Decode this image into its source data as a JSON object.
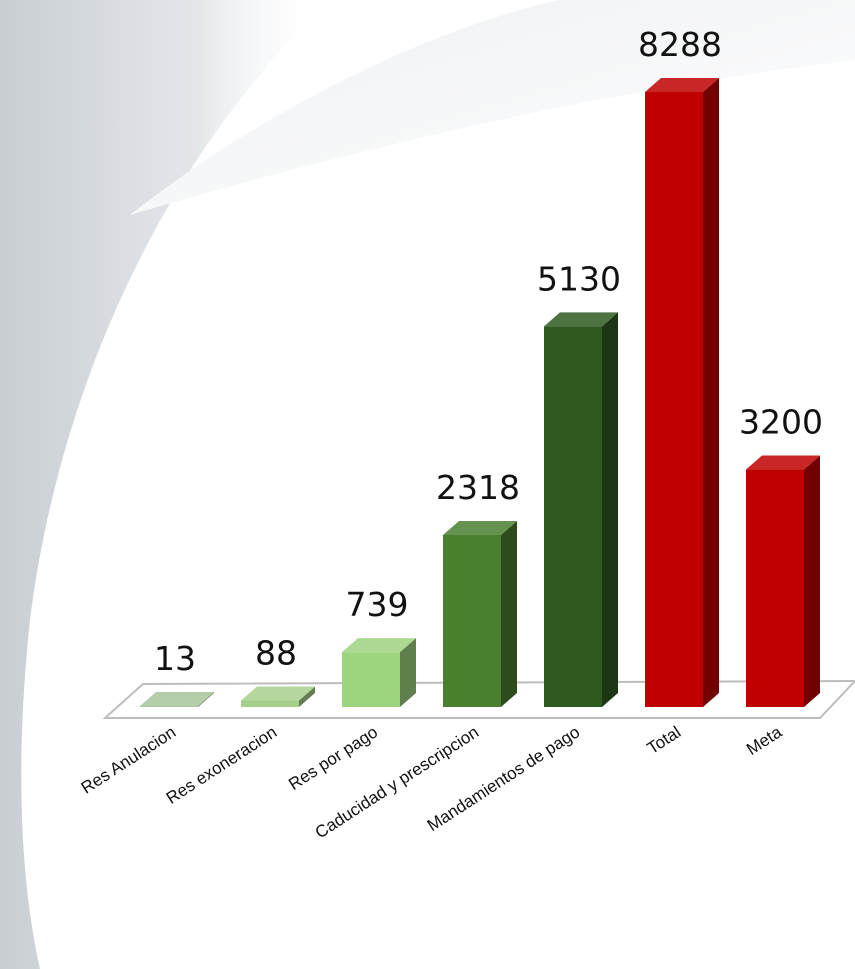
{
  "chart_data": {
    "type": "bar3d",
    "categories": [
      "Res Anulacion",
      "Res exoneracion",
      "Res por pago",
      "Caducidad y prescripcion",
      "Mandamientos de pago",
      "Total",
      "Meta"
    ],
    "values": [
      13,
      88,
      739,
      2318,
      5130,
      8288,
      3200
    ],
    "colors": [
      "#a9c49a",
      "#a6d08a",
      "#9fd47f",
      "#4a7f2f",
      "#2e5a1f",
      "#c00000",
      "#c00000"
    ]
  }
}
